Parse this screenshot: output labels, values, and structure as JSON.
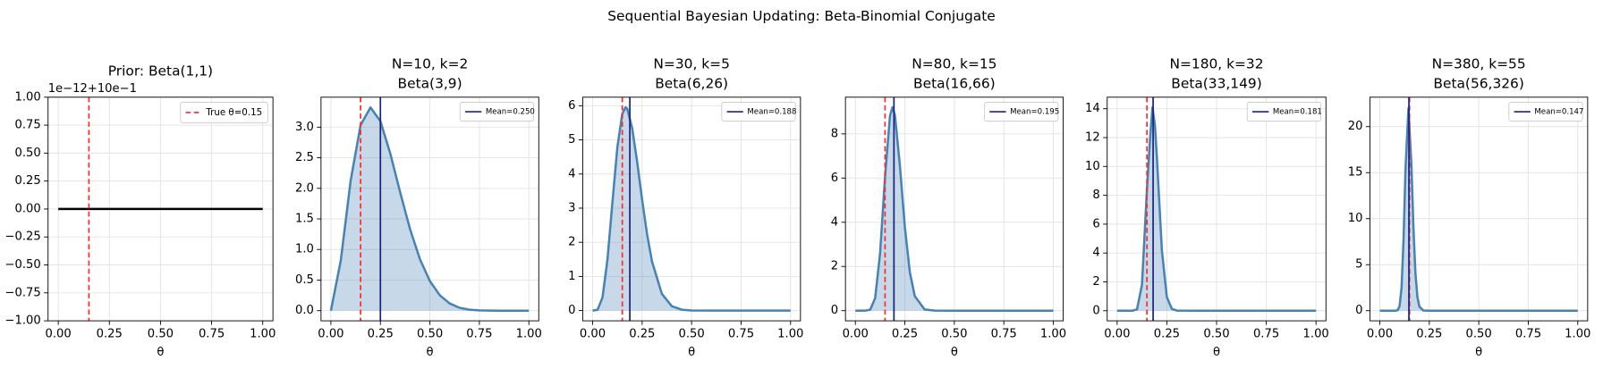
{
  "title": "Sequential Bayesian Updating: Beta-Binomial Conjugate",
  "chart_data": [
    {
      "type": "line",
      "title": [
        "Prior: Beta(1,1)"
      ],
      "xlabel": "θ",
      "offset_text": "1e−12+10e−1",
      "xlim": [
        -0.05,
        1.05
      ],
      "ylim": [
        -1,
        1
      ],
      "grid": true,
      "fill": false,
      "legend": "upper right",
      "xticks": [
        {
          "value": 0,
          "label": "0.00"
        },
        {
          "value": 0.25,
          "label": "0.25"
        },
        {
          "value": 0.5,
          "label": "0.50"
        },
        {
          "value": 0.75,
          "label": "0.75"
        },
        {
          "value": 1,
          "label": "1.00"
        }
      ],
      "yticks": [
        {
          "value": -1,
          "label": "−1.00"
        },
        {
          "value": -0.75,
          "label": "−0.75"
        },
        {
          "value": -0.5,
          "label": "−0.50"
        },
        {
          "value": -0.25,
          "label": "−0.25"
        },
        {
          "value": 0,
          "label": "0.00"
        },
        {
          "value": 0.25,
          "label": "0.25"
        },
        {
          "value": 0.5,
          "label": "0.50"
        },
        {
          "value": 0.75,
          "label": "0.75"
        },
        {
          "value": 1,
          "label": "1.00"
        }
      ],
      "x": [
        0,
        1
      ],
      "series": [
        {
          "color": "#000000",
          "values": [
            0,
            0
          ]
        }
      ],
      "vlines": [
        {
          "name": "True θ=0.15",
          "x": 0.15,
          "color": "#ff2a2a",
          "style": "dashed"
        }
      ]
    },
    {
      "type": "line",
      "title": [
        "N=10, k=2",
        "Beta(3,9)"
      ],
      "xlabel": "θ",
      "xlim": [
        -0.05,
        1.05
      ],
      "ylim": [
        -0.166,
        3.49
      ],
      "grid": true,
      "fill": true,
      "legend": "upper right",
      "xticks": [
        {
          "value": 0,
          "label": "0.00"
        },
        {
          "value": 0.25,
          "label": "0.25"
        },
        {
          "value": 0.5,
          "label": "0.50"
        },
        {
          "value": 0.75,
          "label": "0.75"
        },
        {
          "value": 1,
          "label": "1.00"
        }
      ],
      "yticks": [
        {
          "value": 0,
          "label": "0.0"
        },
        {
          "value": 0.5,
          "label": "0.5"
        },
        {
          "value": 1,
          "label": "1.0"
        },
        {
          "value": 1.5,
          "label": "1.5"
        },
        {
          "value": 2,
          "label": "2.0"
        },
        {
          "value": 2.5,
          "label": "2.5"
        },
        {
          "value": 3,
          "label": "3.0"
        }
      ],
      "x": [
        0,
        0.05,
        0.1,
        0.15,
        0.2,
        0.25,
        0.3,
        0.35,
        0.4,
        0.45,
        0.5,
        0.55,
        0.6,
        0.65,
        0.7,
        0.75,
        0.8,
        0.85,
        0.9,
        0.95,
        1
      ],
      "series": [
        {
          "color": "#4682b4",
          "values": [
            0,
            0.821,
            2.131,
            3.035,
            3.322,
            3.097,
            2.568,
            1.932,
            1.33,
            0.839,
            0.483,
            0.252,
            0.117,
            0.0471,
            0.0159,
            0.0043,
            0.0008,
            0.0001,
            0,
            0,
            0
          ]
        }
      ],
      "vlines": [
        {
          "x": 0.15,
          "color": "#ff2a2a",
          "style": "dashed"
        },
        {
          "name": "Mean=0.250",
          "x": 0.25,
          "color": "#1a237e",
          "style": "solid"
        }
      ]
    },
    {
      "type": "line",
      "title": [
        "N=30, k=5",
        "Beta(6,26)"
      ],
      "xlabel": "θ",
      "xlim": [
        -0.05,
        1.05
      ],
      "ylim": [
        -0.3,
        6.25
      ],
      "grid": true,
      "fill": true,
      "legend": "upper right",
      "xticks": [
        {
          "value": 0,
          "label": "0.00"
        },
        {
          "value": 0.25,
          "label": "0.25"
        },
        {
          "value": 0.5,
          "label": "0.50"
        },
        {
          "value": 0.75,
          "label": "0.75"
        },
        {
          "value": 1,
          "label": "1.00"
        }
      ],
      "yticks": [
        0,
        1,
        2,
        3,
        4,
        5,
        6
      ],
      "x": [
        0,
        0.025,
        0.05,
        0.075,
        0.1,
        0.125,
        0.15,
        0.1667,
        0.175,
        0.2,
        0.225,
        0.25,
        0.275,
        0.3,
        0.35,
        0.4,
        0.45,
        0.5,
        0.6,
        0.8,
        1
      ],
      "series": [
        {
          "color": "#4682b4",
          "values": [
            0,
            0.0229,
            0.383,
            1.493,
            3.171,
            4.787,
            5.766,
            5.953,
            5.912,
            5.338,
            4.354,
            3.248,
            2.239,
            1.439,
            0.488,
            0.129,
            0.0263,
            0.0041,
            0,
            0,
            0
          ]
        }
      ],
      "vlines": [
        {
          "x": 0.15,
          "color": "#ff2a2a",
          "style": "dashed"
        },
        {
          "name": "Mean=0.188",
          "x": 0.188,
          "color": "#1a237e",
          "style": "solid"
        }
      ]
    },
    {
      "type": "line",
      "title": [
        "N=80, k=15",
        "Beta(16,66)"
      ],
      "xlabel": "θ",
      "xlim": [
        -0.05,
        1.05
      ],
      "ylim": [
        -0.46,
        9.66
      ],
      "grid": true,
      "fill": true,
      "legend": "upper right",
      "xticks": [
        {
          "value": 0,
          "label": "0.00"
        },
        {
          "value": 0.25,
          "label": "0.25"
        },
        {
          "value": 0.5,
          "label": "0.50"
        },
        {
          "value": 0.75,
          "label": "0.75"
        },
        {
          "value": 1,
          "label": "1.00"
        }
      ],
      "yticks": [
        0,
        2,
        4,
        6,
        8
      ],
      "x": [
        0,
        0.05,
        0.075,
        0.1,
        0.125,
        0.15,
        0.175,
        0.1875,
        0.2,
        0.225,
        0.25,
        0.275,
        0.3,
        0.35,
        0.4,
        0.5,
        1
      ],
      "series": [
        {
          "color": "#4682b4",
          "values": [
            0,
            0.0006,
            0.045,
            0.57,
            2.599,
            6.08,
            8.82,
            9.2,
            8.84,
            6.57,
            3.79,
            1.75,
            0.659,
            0.054,
            0.003,
            0,
            0
          ]
        }
      ],
      "vlines": [
        {
          "x": 0.15,
          "color": "#ff2a2a",
          "style": "dashed"
        },
        {
          "name": "Mean=0.195",
          "x": 0.195,
          "color": "#1a237e",
          "style": "solid"
        }
      ]
    },
    {
      "type": "line",
      "title": [
        "N=180, k=32",
        "Beta(33,149)"
      ],
      "xlabel": "θ",
      "xlim": [
        -0.05,
        1.05
      ],
      "ylim": [
        -0.7,
        14.8
      ],
      "grid": true,
      "fill": true,
      "legend": "upper right",
      "xticks": [
        {
          "value": 0,
          "label": "0.00"
        },
        {
          "value": 0.25,
          "label": "0.25"
        },
        {
          "value": 0.5,
          "label": "0.50"
        },
        {
          "value": 0.75,
          "label": "0.75"
        },
        {
          "value": 1,
          "label": "1.00"
        }
      ],
      "yticks": [
        0,
        2,
        4,
        6,
        8,
        10,
        12,
        14
      ],
      "x": [
        0,
        0.075,
        0.1,
        0.125,
        0.15,
        0.165,
        0.1778,
        0.19,
        0.2,
        0.225,
        0.25,
        0.275,
        0.3,
        0.4,
        1
      ],
      "series": [
        {
          "color": "#4682b4",
          "values": [
            0,
            0.0005,
            0.092,
            1.8,
            8.41,
            11.82,
            14.1,
            12.87,
            10.63,
            4.2,
            0.95,
            0.13,
            0.01,
            0,
            0
          ]
        }
      ],
      "vlines": [
        {
          "x": 0.15,
          "color": "#ff2a2a",
          "style": "dashed"
        },
        {
          "name": "Mean=0.181",
          "x": 0.181,
          "color": "#1a237e",
          "style": "solid"
        }
      ]
    },
    {
      "type": "line",
      "title": [
        "N=380, k=55",
        "Beta(56,326)"
      ],
      "xlabel": "θ",
      "xlim": [
        -0.05,
        1.05
      ],
      "ylim": [
        -1.1,
        23.2
      ],
      "grid": true,
      "fill": true,
      "legend": "upper right",
      "xticks": [
        {
          "value": 0,
          "label": "0.00"
        },
        {
          "value": 0.25,
          "label": "0.25"
        },
        {
          "value": 0.5,
          "label": "0.50"
        },
        {
          "value": 0.75,
          "label": "0.75"
        },
        {
          "value": 1,
          "label": "1.00"
        }
      ],
      "yticks": [
        0,
        5,
        10,
        15,
        20
      ],
      "x": [
        0,
        0.08,
        0.09,
        0.1,
        0.11,
        0.12,
        0.13,
        0.1447,
        0.16,
        0.17,
        0.18,
        0.19,
        0.2,
        0.22,
        0.25,
        1
      ],
      "series": [
        {
          "color": "#4682b4",
          "values": [
            0,
            0.003,
            0.056,
            0.51,
            2.54,
            7.77,
            15.46,
            22,
            15.67,
            8.94,
            4.06,
            1.48,
            0.44,
            0.02,
            0,
            0
          ]
        }
      ],
      "vlines": [
        {
          "x": 0.15,
          "color": "#ff2a2a",
          "style": "dashed"
        },
        {
          "name": "Mean=0.147",
          "x": 0.147,
          "color": "#1a237e",
          "style": "solid"
        }
      ]
    }
  ]
}
